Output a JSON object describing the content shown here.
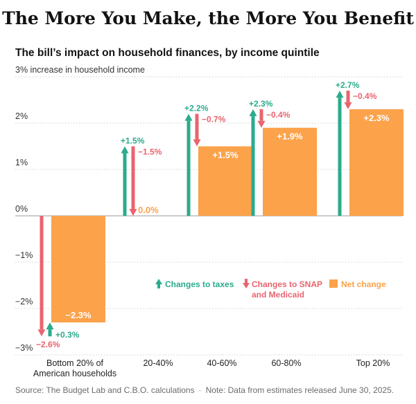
{
  "title": "The More You Make, the More You Benefit",
  "subtitle": "The bill’s impact on household finances, by income quintile",
  "footer": {
    "source": "Source: The Budget Lab and C.B.O. calculations",
    "separator": "·",
    "note": "Note: Data from estimates released June 30, 2025."
  },
  "colors": {
    "taxes": "#2bab8c",
    "snap": "#e9646f",
    "net": "#fba24b",
    "net_label": "#ffffff"
  },
  "chart_data": {
    "type": "bar",
    "title": "The bill’s impact on household finances, by income quintile",
    "y_unit_label": "increase in household income",
    "ylim": [
      -3,
      3
    ],
    "y_ticks": [
      3,
      2,
      1,
      0,
      -1,
      -2,
      -3
    ],
    "y_tick_labels": [
      "3%",
      "2%",
      "1%",
      "0%",
      "−1%",
      "−2%",
      "−3%"
    ],
    "grid": true,
    "categories": [
      [
        "Bottom 20% of",
        "American households"
      ],
      [
        "20-40%"
      ],
      [
        "40-60%"
      ],
      [
        "60-80%"
      ],
      [
        "Top 20%"
      ]
    ],
    "series": [
      {
        "name": "Changes to taxes",
        "values": [
          0.3,
          1.5,
          2.2,
          2.3,
          2.7
        ],
        "labels": [
          "+0.3%",
          "+1.5%",
          "+2.2%",
          "+2.3%",
          "+2.7%"
        ]
      },
      {
        "name": "Changes to SNAP and Medicaid",
        "values": [
          -2.6,
          -1.5,
          -0.7,
          -0.4,
          -0.4
        ],
        "labels": [
          "−2.6%",
          "−1.5%",
          "−0.7%",
          "−0.4%",
          "−0.4%"
        ]
      },
      {
        "name": "Net change",
        "values": [
          -2.3,
          0.0,
          1.5,
          1.9,
          2.3
        ],
        "labels": [
          "−2.3%",
          "0.0%",
          "+1.5%",
          "+1.9%",
          "+2.3%"
        ]
      }
    ],
    "legend": [
      {
        "name": "Changes to taxes",
        "lines": [
          "Changes to taxes"
        ]
      },
      {
        "name": "Changes to SNAP and Medicaid",
        "lines": [
          "Changes to SNAP",
          "and Medicaid"
        ]
      },
      {
        "name": "Net change",
        "lines": [
          "Net change"
        ]
      }
    ],
    "legend_position": "inside-bottom-right"
  }
}
